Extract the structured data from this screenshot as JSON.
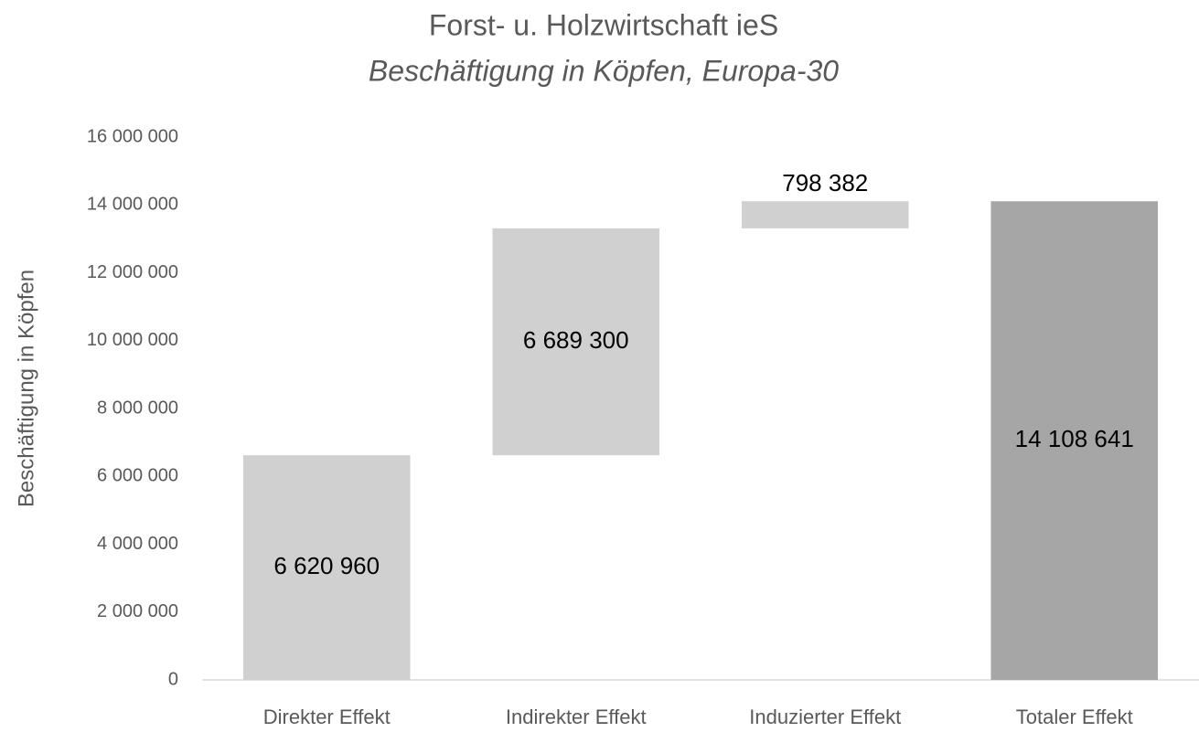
{
  "chart_data": {
    "type": "waterfall",
    "title": "Forst- u. Holzwirtschaft ieS",
    "subtitle": "Beschäftigung in Köpfen, Europa-30",
    "y_label": "Beschäftigung in Köpfen",
    "categories": [
      "Direkter Effekt",
      "Indirekter Effekt",
      "Induzierter Effekt",
      "Totaler Effekt"
    ],
    "values": [
      6620960,
      6689300,
      798382,
      14108641
    ],
    "value_labels": [
      "6 620 960",
      "6 689 300",
      "798 382",
      "14 108 641"
    ],
    "totals": [
      false,
      false,
      false,
      true
    ],
    "colors": [
      "#d0d0d0",
      "#d0d0d0",
      "#d0d0d0",
      "#a6a6a6"
    ],
    "ylim": [
      0,
      16000000
    ],
    "yticks": [
      0,
      {
        "value": 2000000,
        "label": "2 000 000"
      },
      {
        "value": 4000000,
        "label": "4 000 000"
      },
      {
        "value": 6000000,
        "label": "6 000 000"
      },
      {
        "value": 8000000,
        "label": "8 000 000"
      },
      {
        "value": 10000000,
        "label": "10 000 000"
      },
      {
        "value": 12000000,
        "label": "12 000 000"
      },
      {
        "value": 14000000,
        "label": "14 000 000"
      },
      {
        "value": 16000000,
        "label": "16 000 000"
      }
    ],
    "grid": false
  }
}
